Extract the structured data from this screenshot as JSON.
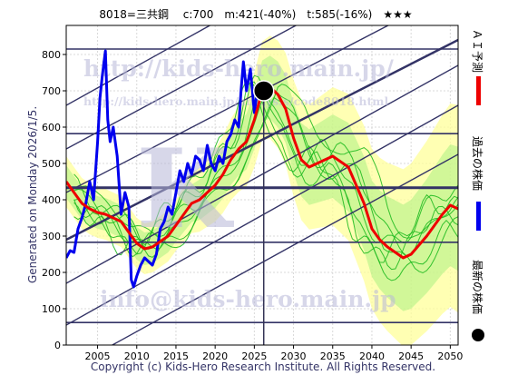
{
  "header": {
    "title": "8018=三共鋼　 c:700　m:421(-40%)　t:585(-16%)　★★★"
  },
  "side_label": "Generated on Monday 2026/1/5.",
  "legend": {
    "ai_forecast": "ＡＩ予測",
    "past_price": "過去の株価",
    "latest_price": "最新の株価"
  },
  "watermarks": {
    "url": "http://kids-hero.main.jp/",
    "analysis_url": "http://kids-hero.main.jp/analysis/code8018.html",
    "email": "info@kids-hero.main.jp"
  },
  "footer": {
    "copyright": "Copyright (c) Kids-Hero Research Institute. All Rights Reserved."
  },
  "colors": {
    "past_price": "#0000ee",
    "ai_forecast": "#ee0000",
    "scenario": "#22bb22",
    "band_fill": "#ffff99",
    "band_green": "#99ee77",
    "channel": "#333366",
    "latest_dot": "#000000"
  },
  "chart_data": {
    "type": "line",
    "title": "8018=三共鋼　 c:700　m:421(-40%)　t:585(-16%)　★★★",
    "xlim": [
      2001,
      2051
    ],
    "ylim": [
      0,
      880
    ],
    "x_ticks": [
      2005,
      2010,
      2015,
      2020,
      2025,
      2030,
      2035,
      2040,
      2045,
      2050
    ],
    "y_ticks": [
      0,
      100,
      200,
      300,
      400,
      500,
      600,
      700,
      800
    ],
    "horizontal_lines": [
      62,
      283,
      433,
      582,
      815
    ],
    "current_year": 2026.2,
    "latest": {
      "x": 2026.2,
      "y": 700
    },
    "channel_lines": [
      {
        "start": [
          2001,
          -70
        ],
        "end": [
          2051,
          525
        ]
      },
      {
        "start": [
          2001,
          55
        ],
        "end": [
          2051,
          660
        ]
      },
      {
        "start": [
          2001,
          170
        ],
        "end": [
          2051,
          770
        ]
      },
      {
        "start": [
          2001,
          290
        ],
        "end": [
          2051,
          840
        ],
        "bold": true
      },
      {
        "start": [
          2001,
          420
        ],
        "end": [
          2051,
          980
        ]
      },
      {
        "start": [
          2001,
          540
        ],
        "end": [
          2051,
          1120
        ]
      },
      {
        "start": [
          2001,
          660
        ],
        "end": [
          2051,
          1260
        ]
      }
    ],
    "series": [
      {
        "name": "過去の株価",
        "color": "#0000ee",
        "x": [
          2001,
          2001.5,
          2002,
          2002.5,
          2003,
          2003.5,
          2004,
          2004.5,
          2005,
          2005.3,
          2005.6,
          2006,
          2006.3,
          2006.6,
          2007,
          2007.5,
          2008,
          2008.5,
          2009,
          2009.3,
          2009.6,
          2010,
          2010.5,
          2011,
          2011.5,
          2012,
          2012.5,
          2013,
          2013.5,
          2014,
          2014.5,
          2015,
          2015.5,
          2016,
          2016.5,
          2017,
          2017.5,
          2018,
          2018.5,
          2019,
          2019.5,
          2020,
          2020.5,
          2021,
          2021.5,
          2022,
          2022.5,
          2023,
          2023.3,
          2023.6,
          2024,
          2024.5,
          2025,
          2025.5,
          2026
        ],
        "y": [
          240,
          260,
          255,
          320,
          350,
          390,
          450,
          400,
          560,
          680,
          740,
          810,
          620,
          560,
          600,
          520,
          360,
          420,
          380,
          180,
          160,
          190,
          220,
          240,
          230,
          220,
          250,
          320,
          340,
          380,
          360,
          420,
          480,
          450,
          500,
          470,
          520,
          510,
          480,
          550,
          500,
          480,
          520,
          500,
          560,
          580,
          620,
          600,
          700,
          780,
          700,
          760,
          640,
          720,
          700
        ]
      },
      {
        "name": "ＡＩ予測",
        "color": "#ee0000",
        "x": [
          2001,
          2002,
          2003,
          2004,
          2005,
          2006,
          2007,
          2008,
          2009,
          2010,
          2011,
          2012,
          2013,
          2014,
          2015,
          2016,
          2017,
          2018,
          2019,
          2020,
          2021,
          2022,
          2023,
          2024,
          2025,
          2026,
          2027,
          2028,
          2029,
          2030,
          2031,
          2032,
          2033,
          2034,
          2035,
          2036,
          2037,
          2038,
          2039,
          2040,
          2041,
          2042,
          2043,
          2044,
          2045,
          2046,
          2047,
          2048,
          2049,
          2050,
          2051
        ],
        "y": [
          450,
          420,
          390,
          375,
          365,
          360,
          350,
          340,
          310,
          280,
          265,
          270,
          285,
          300,
          330,
          360,
          390,
          400,
          420,
          440,
          470,
          510,
          540,
          560,
          620,
          700,
          710,
          690,
          650,
          570,
          510,
          490,
          500,
          510,
          520,
          505,
          490,
          440,
          390,
          320,
          290,
          270,
          255,
          240,
          250,
          275,
          300,
          330,
          360,
          385,
          375
        ]
      }
    ]
  }
}
